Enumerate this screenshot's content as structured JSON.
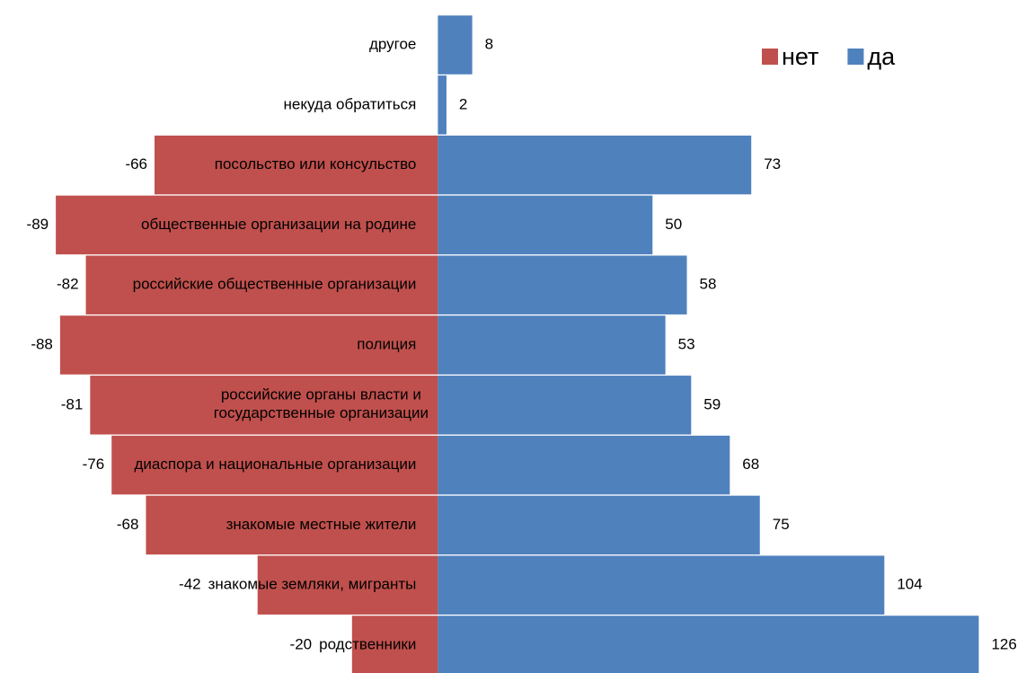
{
  "chart_data": {
    "type": "diverging-bar",
    "categories": [
      "другое",
      "некуда обратиться",
      "посольство или консульство",
      "общественные организации на родине",
      "российские общественные организации",
      "полиция",
      "российские органы власти и\nгосударственные организации",
      "диаспора и национальные организации",
      "знакомые местные жители",
      "знакомые земляки, мигранты",
      "родственники"
    ],
    "series": [
      {
        "name": "нет",
        "color": "#c0504d",
        "values": [
          null,
          null,
          -66,
          -89,
          -82,
          -88,
          -81,
          -76,
          -68,
          -42,
          -20
        ]
      },
      {
        "name": "да",
        "color": "#4f81bd",
        "values": [
          8,
          2,
          73,
          50,
          58,
          53,
          59,
          68,
          75,
          104,
          126
        ]
      }
    ],
    "xlim": [
      -102,
      137
    ],
    "legend": "top-right"
  }
}
